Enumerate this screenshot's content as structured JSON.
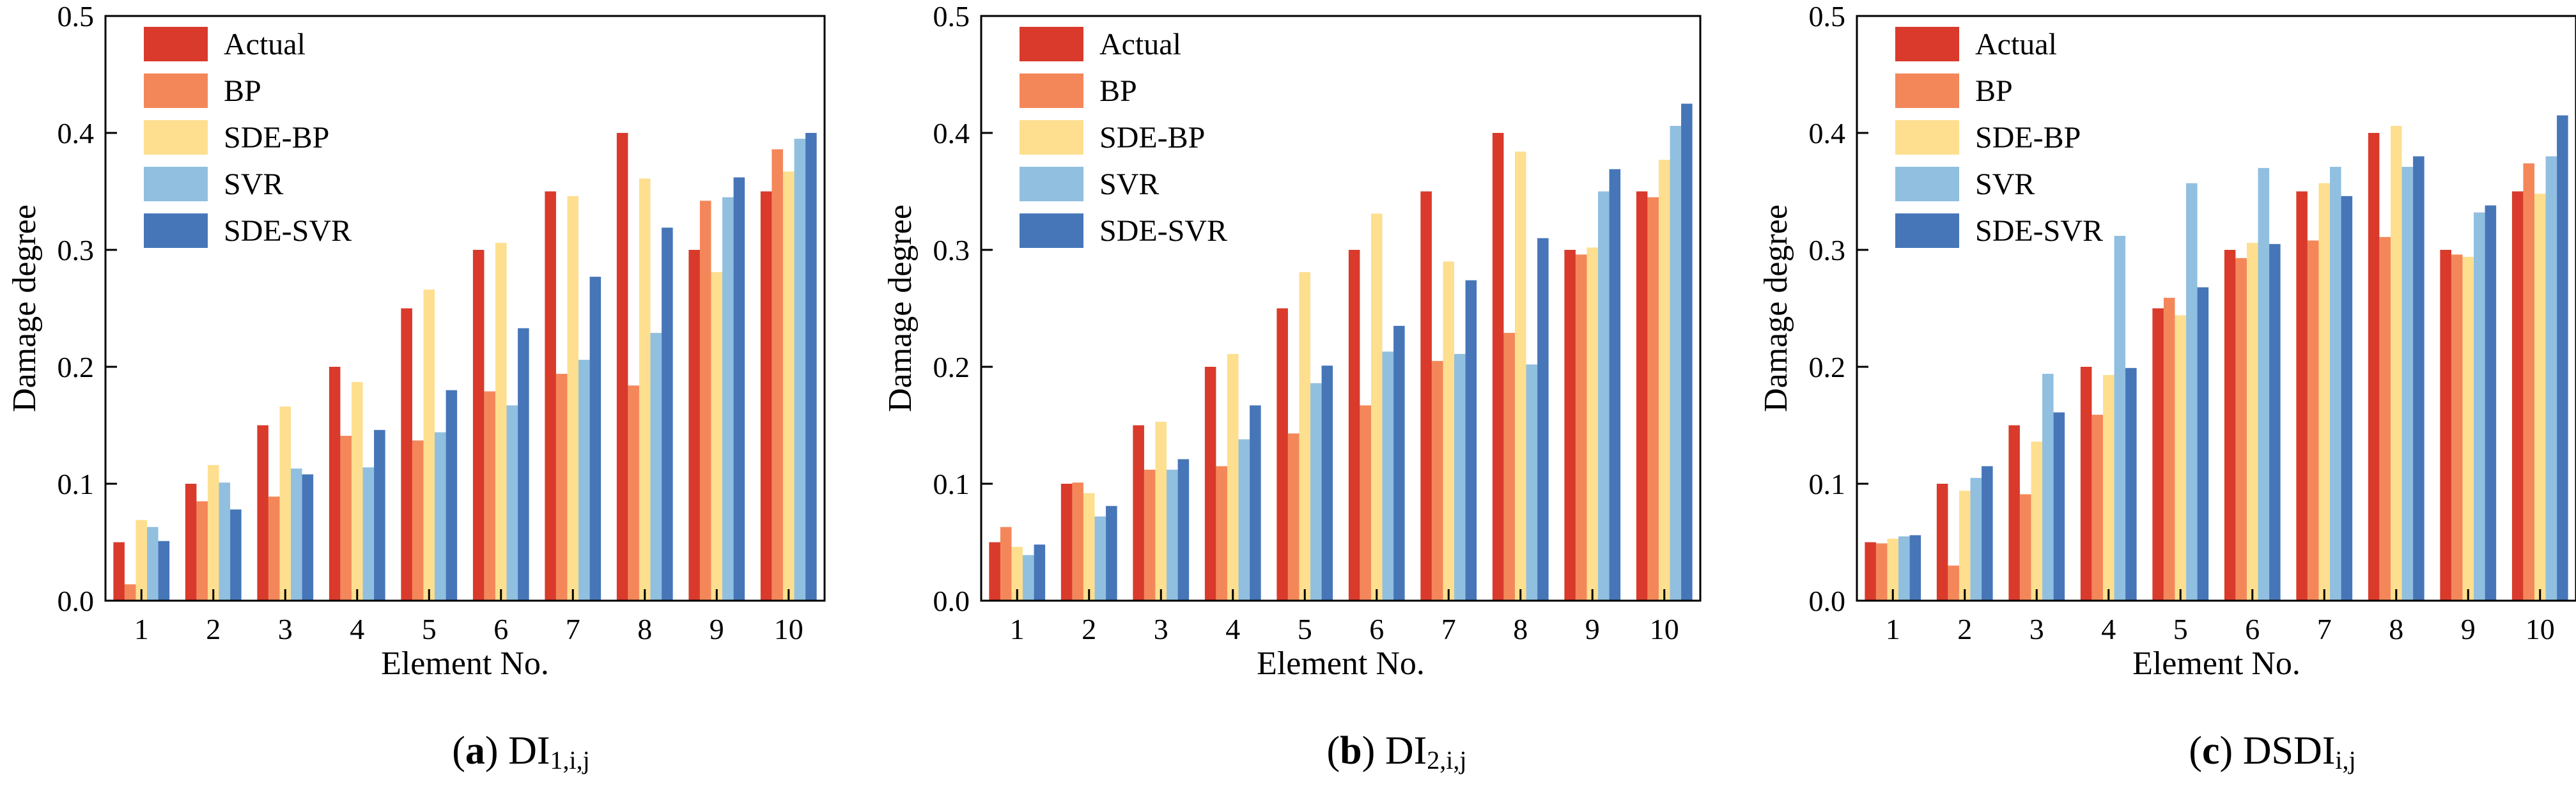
{
  "colors": {
    "Actual": "#d93a2b",
    "BP": "#f4875a",
    "SDE-BP": "#fddf8f",
    "SVR": "#91bfe0",
    "SDE-SVR": "#4676b8"
  },
  "chart_data": [
    {
      "type": "bar",
      "panel_label": "a",
      "caption_main": "DI",
      "caption_sub": "1,i,j",
      "xlabel": "Element No.",
      "ylabel": "Damage degree",
      "ylim": [
        0,
        0.5
      ],
      "yticks": [
        "0.0",
        "0.1",
        "0.2",
        "0.3",
        "0.4",
        "0.5"
      ],
      "categories": [
        "1",
        "2",
        "3",
        "4",
        "5",
        "6",
        "7",
        "8",
        "9",
        "10"
      ],
      "legend": [
        "Actual",
        "BP",
        "SDE-BP",
        "SVR",
        "SDE-SVR"
      ],
      "series": [
        {
          "name": "Actual",
          "values": [
            0.05,
            0.1,
            0.15,
            0.2,
            0.25,
            0.3,
            0.35,
            0.4,
            0.3,
            0.35
          ]
        },
        {
          "name": "BP",
          "values": [
            0.014,
            0.085,
            0.089,
            0.141,
            0.137,
            0.179,
            0.194,
            0.184,
            0.342,
            0.386
          ]
        },
        {
          "name": "SDE-BP",
          "values": [
            0.069,
            0.116,
            0.166,
            0.187,
            0.266,
            0.306,
            0.346,
            0.361,
            0.281,
            0.367
          ]
        },
        {
          "name": "SVR",
          "values": [
            0.063,
            0.101,
            0.113,
            0.114,
            0.144,
            0.167,
            0.206,
            0.229,
            0.345,
            0.395
          ]
        },
        {
          "name": "SDE-SVR",
          "values": [
            0.051,
            0.078,
            0.108,
            0.146,
            0.18,
            0.233,
            0.277,
            0.319,
            0.362,
            0.4
          ]
        }
      ]
    },
    {
      "type": "bar",
      "panel_label": "b",
      "caption_main": "DI",
      "caption_sub": "2,i,j",
      "xlabel": "Element No.",
      "ylabel": "Damage degree",
      "ylim": [
        0,
        0.5
      ],
      "yticks": [
        "0.0",
        "0.1",
        "0.2",
        "0.3",
        "0.4",
        "0.5"
      ],
      "categories": [
        "1",
        "2",
        "3",
        "4",
        "5",
        "6",
        "7",
        "8",
        "9",
        "10"
      ],
      "legend": [
        "Actual",
        "BP",
        "SDE-BP",
        "SVR",
        "SDE-SVR"
      ],
      "series": [
        {
          "name": "Actual",
          "values": [
            0.05,
            0.1,
            0.15,
            0.2,
            0.25,
            0.3,
            0.35,
            0.4,
            0.3,
            0.35
          ]
        },
        {
          "name": "BP",
          "values": [
            0.063,
            0.101,
            0.112,
            0.115,
            0.143,
            0.167,
            0.205,
            0.229,
            0.296,
            0.345
          ]
        },
        {
          "name": "SDE-BP",
          "values": [
            0.046,
            0.092,
            0.153,
            0.211,
            0.281,
            0.331,
            0.29,
            0.384,
            0.302,
            0.377
          ]
        },
        {
          "name": "SVR",
          "values": [
            0.039,
            0.072,
            0.112,
            0.138,
            0.186,
            0.213,
            0.211,
            0.202,
            0.35,
            0.406
          ]
        },
        {
          "name": "SDE-SVR",
          "values": [
            0.048,
            0.081,
            0.121,
            0.167,
            0.201,
            0.235,
            0.274,
            0.31,
            0.369,
            0.425
          ]
        }
      ]
    },
    {
      "type": "bar",
      "panel_label": "c",
      "caption_main": "DSDI",
      "caption_sub": "i,j",
      "xlabel": "Element No.",
      "ylabel": "Damage degree",
      "ylim": [
        0,
        0.5
      ],
      "yticks": [
        "0.0",
        "0.1",
        "0.2",
        "0.3",
        "0.4",
        "0.5"
      ],
      "categories": [
        "1",
        "2",
        "3",
        "4",
        "5",
        "6",
        "7",
        "8",
        "9",
        "10"
      ],
      "legend": [
        "Actual",
        "BP",
        "SDE-BP",
        "SVR",
        "SDE-SVR"
      ],
      "series": [
        {
          "name": "Actual",
          "values": [
            0.05,
            0.1,
            0.15,
            0.2,
            0.25,
            0.3,
            0.35,
            0.4,
            0.3,
            0.35
          ]
        },
        {
          "name": "BP",
          "values": [
            0.049,
            0.03,
            0.091,
            0.159,
            0.259,
            0.293,
            0.308,
            0.311,
            0.296,
            0.374
          ]
        },
        {
          "name": "SDE-BP",
          "values": [
            0.053,
            0.094,
            0.136,
            0.193,
            0.244,
            0.306,
            0.357,
            0.406,
            0.294,
            0.348
          ]
        },
        {
          "name": "SVR",
          "values": [
            0.055,
            0.105,
            0.194,
            0.312,
            0.357,
            0.37,
            0.371,
            0.371,
            0.332,
            0.38
          ]
        },
        {
          "name": "SDE-SVR",
          "values": [
            0.056,
            0.115,
            0.161,
            0.199,
            0.268,
            0.305,
            0.346,
            0.38,
            0.338,
            0.415
          ]
        }
      ]
    }
  ]
}
